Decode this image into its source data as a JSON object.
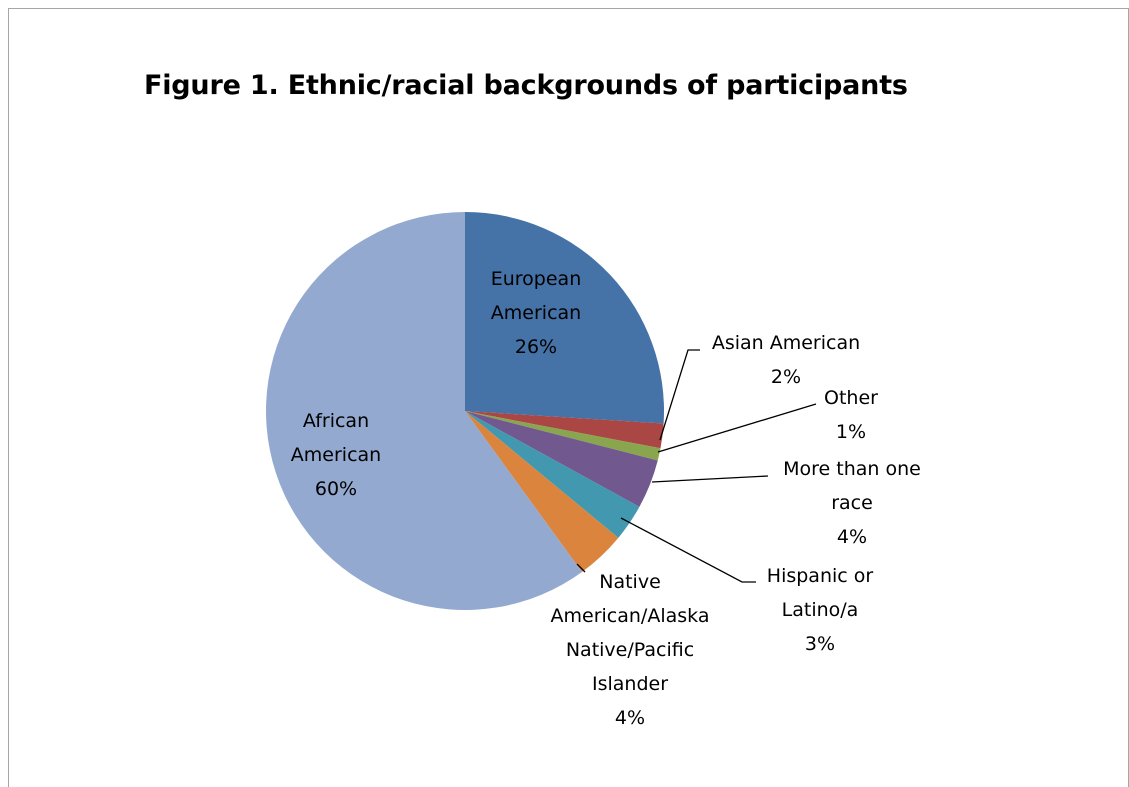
{
  "chart_data": {
    "type": "pie",
    "title": "Figure 1. Ethnic/racial backgrounds of participants",
    "slices": [
      {
        "name": "European American",
        "percent_label": "26%",
        "value": 26,
        "color": "#4572a7",
        "label_lines": [
          "European",
          "American",
          "26%"
        ]
      },
      {
        "name": "Asian American",
        "percent_label": "2%",
        "value": 2,
        "color": "#aa4643",
        "label_lines": [
          "Asian American",
          "2%"
        ]
      },
      {
        "name": "Other",
        "percent_label": "1%",
        "value": 1,
        "color": "#89a54e",
        "label_lines": [
          "Other",
          "1%"
        ]
      },
      {
        "name": "More than one race",
        "percent_label": "4%",
        "value": 4,
        "color": "#71588f",
        "label_lines": [
          "More than one",
          "race",
          "4%"
        ]
      },
      {
        "name": "Hispanic or Latino/a",
        "percent_label": "3%",
        "value": 3,
        "color": "#4198af",
        "label_lines": [
          "Hispanic or",
          "Latino/a",
          "3%"
        ]
      },
      {
        "name": "Native American/Alaska Native/Pacific Islander",
        "percent_label": "4%",
        "value": 4,
        "color": "#db843d",
        "label_lines": [
          "Native",
          "American/Alaska",
          "Native/Pacific",
          "Islander",
          "4%"
        ]
      },
      {
        "name": "African American",
        "percent_label": "60%",
        "value": 60,
        "color": "#93a9cf",
        "label_lines": [
          "African",
          "American",
          "60%"
        ]
      }
    ]
  }
}
